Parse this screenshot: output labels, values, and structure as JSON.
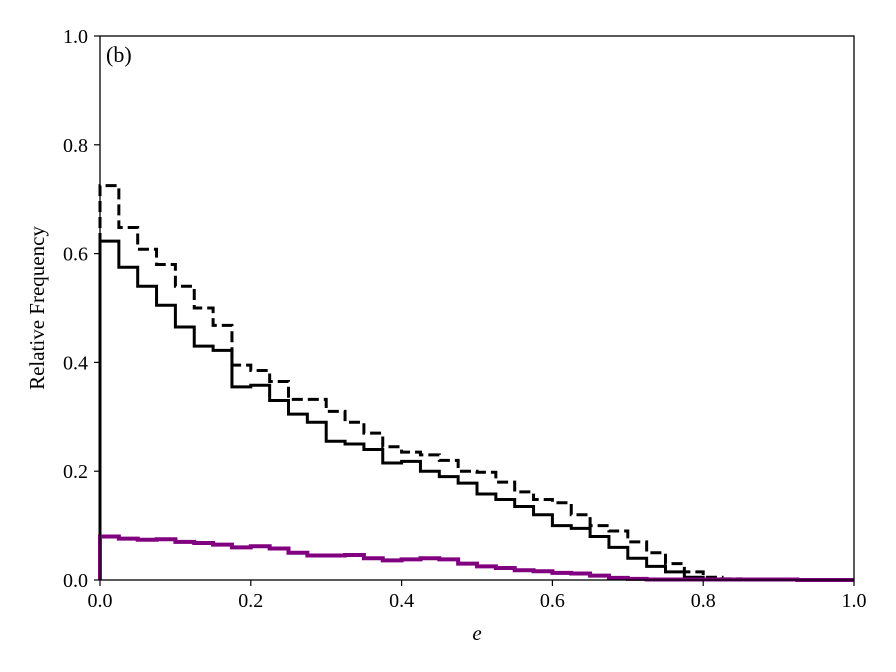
{
  "chart_data": {
    "type": "line",
    "step": "post",
    "annotation": "(b)",
    "xlabel": "e",
    "ylabel": "Relative Frequency",
    "xlim": [
      0.0,
      1.0
    ],
    "ylim": [
      0.0,
      1.0
    ],
    "xticks": [
      "0.0",
      "0.2",
      "0.4",
      "0.6",
      "0.8",
      "1.0"
    ],
    "yticks": [
      "0.0",
      "0.2",
      "0.4",
      "0.6",
      "0.8",
      "1.0"
    ],
    "grid": false,
    "legend": false,
    "bin_edges": [
      0.0,
      0.025,
      0.05,
      0.075,
      0.1,
      0.125,
      0.15,
      0.175,
      0.2,
      0.225,
      0.25,
      0.275,
      0.3,
      0.325,
      0.35,
      0.375,
      0.4,
      0.425,
      0.45,
      0.475,
      0.5,
      0.525,
      0.55,
      0.575,
      0.6,
      0.625,
      0.65,
      0.675,
      0.7,
      0.725,
      0.75,
      0.775,
      0.8,
      0.825,
      0.85,
      0.875,
      0.9,
      0.925,
      0.95,
      0.975,
      1.0
    ],
    "series": [
      {
        "style": "dashed",
        "color": "#000000",
        "values": [
          0.725,
          0.648,
          0.608,
          0.58,
          0.54,
          0.5,
          0.468,
          0.395,
          0.385,
          0.365,
          0.332,
          0.332,
          0.31,
          0.29,
          0.27,
          0.245,
          0.235,
          0.23,
          0.22,
          0.2,
          0.198,
          0.18,
          0.162,
          0.148,
          0.142,
          0.12,
          0.1,
          0.09,
          0.07,
          0.05,
          0.03,
          0.015,
          0.005,
          0.002,
          0.001,
          0.001,
          0.001,
          0.001,
          0.0,
          0.0
        ]
      },
      {
        "style": "solid",
        "color": "#000000",
        "values": [
          0.623,
          0.575,
          0.54,
          0.505,
          0.465,
          0.43,
          0.422,
          0.355,
          0.358,
          0.33,
          0.305,
          0.29,
          0.255,
          0.25,
          0.24,
          0.215,
          0.218,
          0.2,
          0.19,
          0.178,
          0.158,
          0.148,
          0.135,
          0.12,
          0.1,
          0.095,
          0.08,
          0.06,
          0.04,
          0.025,
          0.015,
          0.005,
          0.001,
          0.001,
          0.001,
          0.001,
          0.0,
          0.0,
          0.0,
          0.0
        ]
      },
      {
        "style": "solid-thick",
        "color": "#800080",
        "values": [
          0.08,
          0.076,
          0.074,
          0.075,
          0.07,
          0.068,
          0.065,
          0.06,
          0.062,
          0.058,
          0.05,
          0.045,
          0.045,
          0.046,
          0.04,
          0.036,
          0.038,
          0.04,
          0.038,
          0.03,
          0.025,
          0.022,
          0.018,
          0.016,
          0.013,
          0.012,
          0.008,
          0.004,
          0.002,
          0.001,
          0.001,
          0.001,
          0.001,
          0.001,
          0.001,
          0.001,
          0.001,
          0.0,
          0.0,
          0.0
        ]
      }
    ]
  }
}
